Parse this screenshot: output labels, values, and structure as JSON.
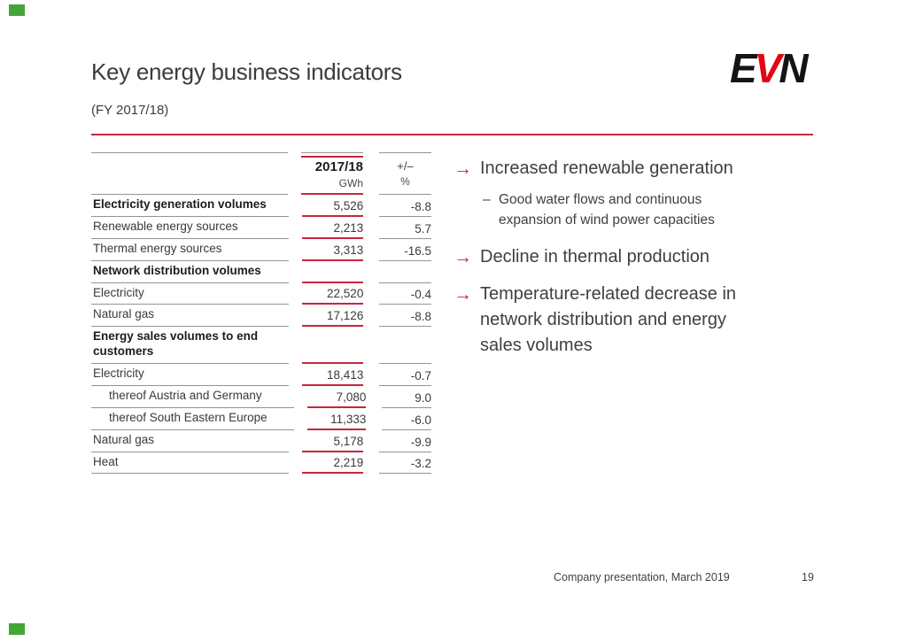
{
  "slide": {
    "title": "Key energy business indicators",
    "subtitle": "(FY 2017/18)"
  },
  "logo": {
    "letter_e": "E",
    "letter_v": "V",
    "letter_n": "N"
  },
  "table": {
    "columns": {
      "year_header": "2017/18",
      "year_unit": "GWh",
      "change_header": "+/–",
      "change_unit": "%"
    },
    "rows": [
      {
        "label": "Electricity generation volumes",
        "value": "5,526",
        "change": "-8.8",
        "style": "bold"
      },
      {
        "label": "Renewable energy sources",
        "value": "2,213",
        "change": "5.7",
        "style": "normal"
      },
      {
        "label": "Thermal energy sources",
        "value": "3,313",
        "change": "-16.5",
        "style": "normal"
      },
      {
        "label": "Network distribution volumes",
        "value": "",
        "change": "",
        "style": "bold"
      },
      {
        "label": "Electricity",
        "value": "22,520",
        "change": "-0.4",
        "style": "normal"
      },
      {
        "label": "Natural gas",
        "value": "17,126",
        "change": "-8.8",
        "style": "normal"
      },
      {
        "label": "Energy sales volumes to end customers",
        "value": "",
        "change": "",
        "style": "bold"
      },
      {
        "label": "Electricity",
        "value": "18,413",
        "change": "-0.7",
        "style": "normal"
      },
      {
        "label": "thereof Austria and Germany",
        "value": "7,080",
        "change": "9.0",
        "style": "indent"
      },
      {
        "label": "thereof South Eastern Europe",
        "value": "11,333",
        "change": "-6.0",
        "style": "indent"
      },
      {
        "label": "Natural gas",
        "value": "5,178",
        "change": "-9.9",
        "style": "normal"
      },
      {
        "label": "Heat",
        "value": "2,219",
        "change": "-3.2",
        "style": "normal"
      }
    ]
  },
  "bullets": [
    {
      "arrow": "→",
      "text": "Increased renewable generation",
      "subitems": [
        {
          "dash": "–",
          "text": "Good water flows and continuous expansion of wind power capacities"
        }
      ]
    },
    {
      "arrow": "→",
      "text": "Decline in thermal production",
      "subitems": []
    },
    {
      "arrow": "→",
      "text": "Temperature-related decrease in network distribution and energy sales volumes",
      "subitems": []
    }
  ],
  "footer": {
    "text": "Company presentation, March 2019",
    "page": "19"
  },
  "colors": {
    "accent_red": "#c62641",
    "logo_red": "#e30613",
    "line_gray": "#949494",
    "text_dark": "#3a3a3a",
    "corner_green": "#44a637"
  }
}
